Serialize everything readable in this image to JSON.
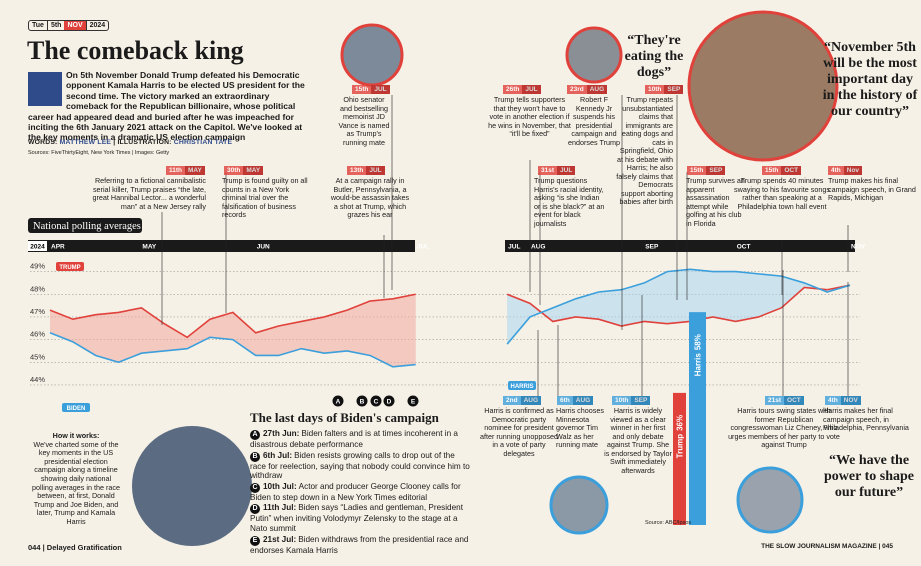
{
  "header": {
    "weekday": "Tue",
    "day": "5th",
    "month": "NOV",
    "year": "2024"
  },
  "title": "The comeback king",
  "intro": "On 5th November Donald Trump defeated his Democratic opponent Kamala Harris to be elected US president for the second time. The victory marked an extraordinary comeback for the Republican billionaire, whose political career had appeared dead and buried after he was impeached for inciting the 6th January 2021 attack on the Capitol. We've looked at the key moments in a dramatic US election campaign",
  "credits": {
    "words_label": "WORDS:",
    "words": "MATTHEW LEE",
    "illustration_label": "ILLUSTRATION:",
    "illustration": "CHRISTIAN TATE"
  },
  "sources": "Sources: FiveThirtyEight, New York Times | Images: Getty",
  "chart_data": {
    "type": "line",
    "title": "National polling averages",
    "year_label": "2024",
    "categories": [
      "APR",
      null,
      null,
      null,
      "MAY",
      null,
      null,
      null,
      null,
      "JUN",
      null,
      null,
      null,
      null,
      null,
      null,
      "JUL",
      null,
      null,
      null,
      "JUL",
      "AUG",
      null,
      null,
      null,
      null,
      "SEP",
      null,
      null,
      null,
      "OCT",
      null,
      null,
      null,
      null,
      "NOV"
    ],
    "series": [
      {
        "name": "TRUMP",
        "color": "#e0413b",
        "values": [
          47.3,
          46.9,
          47.1,
          47.2,
          47.4,
          46.7,
          46.1,
          46.9,
          47.2,
          46.3,
          46.6,
          46.8,
          47.0,
          47.3,
          47.7,
          47.8,
          48.0,
          null,
          null,
          null,
          48.0,
          47.6,
          46.8,
          47.0,
          46.9,
          46.6,
          46.8,
          46.7,
          46.8,
          47.0,
          46.8,
          47.0,
          47.4,
          48.3,
          48.2,
          48.4
        ]
      },
      {
        "name": "BIDEN",
        "color": "#3b9fdc",
        "values": [
          46.3,
          45.9,
          45.3,
          45.0,
          45.4,
          45.5,
          45.6,
          46.1,
          46.0,
          45.3,
          45.3,
          45.6,
          45.4,
          45.5,
          45.3,
          44.8,
          44.9,
          null,
          null,
          null,
          null,
          null,
          null,
          null,
          null,
          null,
          null,
          null,
          null,
          null,
          null,
          null,
          null,
          null,
          null,
          null
        ]
      },
      {
        "name": "HARRIS",
        "color": "#3b9fdc",
        "values": [
          null,
          null,
          null,
          null,
          null,
          null,
          null,
          null,
          null,
          null,
          null,
          null,
          null,
          null,
          null,
          null,
          null,
          null,
          null,
          null,
          45.8,
          47.0,
          47.4,
          47.8,
          48.1,
          48.2,
          48.5,
          49.0,
          49.1,
          49.0,
          49.0,
          48.9,
          48.8,
          48.5,
          48.1,
          48.4
        ]
      }
    ],
    "ylim": [
      43.6,
      49.6
    ],
    "yticks": [
      {
        "value": 44,
        "label": "44%"
      },
      {
        "value": 45,
        "label": "45%"
      },
      {
        "value": 46,
        "label": "46%"
      },
      {
        "value": 47,
        "label": "47%"
      },
      {
        "value": 48,
        "label": "48%"
      },
      {
        "value": 49,
        "label": "49%"
      }
    ],
    "grid": true
  },
  "callouts": [
    {
      "day": "11th",
      "month": "MAY",
      "color": "#e0413b",
      "text": "Referring to a fictional cannibalistic serial killer, Trump praises “the late, great Hannibal Lector... a wonderful man” at a New Jersey rally"
    },
    {
      "day": "30th",
      "month": "MAY",
      "color": "#e0413b",
      "text": "Trump is found guilty on all counts in a New York criminal trial over the falsification of business records"
    },
    {
      "day": "15th",
      "month": "JUL",
      "color": "#e0413b",
      "text": "Ohio senator and bestselling memoirist JD Vance is named as Trump's running mate"
    },
    {
      "day": "13th",
      "month": "JUL",
      "color": "#e0413b",
      "text": "At a campaign rally in Butler, Pennsylvania, a would-be assassin takes a shot at Trump, which grazes his ear"
    },
    {
      "day": "26th",
      "month": "JUL",
      "color": "#e0413b",
      "text": "Trump tells supporters that they won't have to vote in another election if he wins in November, that “it'll be fixed”"
    },
    {
      "day": "31st",
      "month": "JUL",
      "color": "#e0413b",
      "text": "Trump questions Harris's racial identity, asking “is she Indian or is she black?” at an event for black journalists"
    },
    {
      "day": "23rd",
      "month": "AUG",
      "color": "#e0413b",
      "text": "Robert F Kennedy Jr suspends his presidential campaign and endorses Trump"
    },
    {
      "day": "10th",
      "month": "SEP",
      "color": "#e0413b",
      "text": "Trump repeats unsubstantiated claims that immigrants are eating dogs and cats in Springfield, Ohio at his debate with Harris; he also falsely claims that Democrats support aborting babies after birth"
    },
    {
      "day": "15th",
      "month": "SEP",
      "color": "#e0413b",
      "text": "Trump survives an apparent assassination attempt while golfing at his club in Florida"
    },
    {
      "day": "15th",
      "month": "OCT",
      "color": "#e0413b",
      "text": "Trump spends 40 minutes swaying to his favourite songs rather than speaking at a Philadelphia town hall event"
    },
    {
      "day": "4th",
      "month": "Nov",
      "color": "#e0413b",
      "text": "Trump makes his final campaign speech, in Grand Rapids, Michigan"
    },
    {
      "day": "2nd",
      "month": "AUG",
      "color": "#3b9fdc",
      "text": "Harris is confirmed as Democratic party nominee for president after running unopposed in a vote of party delegates"
    },
    {
      "day": "6th",
      "month": "AUG",
      "color": "#3b9fdc",
      "text": "Harris chooses Minnesota governor Tim Walz as her running mate"
    },
    {
      "day": "10th",
      "month": "SEP",
      "color": "#3b9fdc",
      "text": "Harris is widely viewed as a clear winner in her first and only debate against Trump. She is endorsed by Taylor Swift immediately afterwards"
    },
    {
      "day": "21st",
      "month": "OCT",
      "color": "#3b9fdc",
      "text": "Harris tours swing states with former Republican congresswoman Liz Cheney, who urges members of her party to vote against Trump"
    },
    {
      "day": "4th",
      "month": "NOV",
      "color": "#3b9fdc",
      "text": "Harris makes her final campaign speech, in Philadelphia, Pennsylvania"
    }
  ],
  "quotes": [
    "“They're eating the dogs”",
    "“November 5th will be the most important day in the history of our country”",
    "“We have the power to shape our future”"
  ],
  "biden_box": {
    "title": "The last days of Biden's campaign",
    "items": [
      {
        "letter": "A",
        "date": "27th Jun:",
        "text": "Biden falters and is at times incoherent in a disastrous debate performance"
      },
      {
        "letter": "B",
        "date": "6th Jul:",
        "text": "Biden resists growing calls to drop out of the race for reelection, saying that nobody could convince him to withdraw"
      },
      {
        "letter": "C",
        "date": "10th Jul:",
        "text": "Actor and producer George Clooney calls for Biden to step down in a New York Times editorial"
      },
      {
        "letter": "D",
        "date": "11th Jul:",
        "text": "Biden says “Ladies and gentleman, President Putin” when inviting Volodymyr Zelensky to the stage at a Nato summit"
      },
      {
        "letter": "E",
        "date": "21st Jul:",
        "text": "Biden withdraws from the presidential race and endorses Kamala Harris"
      }
    ]
  },
  "how_it_works": {
    "title": "How it works:",
    "text": "We've charted some of the key moments in the US presidential election campaign along a timeline showing daily national polling averages in the race between, at first, Donald Trump and Joe Biden, and later, Trump and Kamala Harris"
  },
  "debate_poll": {
    "type": "bar",
    "categories": [
      "Trump",
      "Harris"
    ],
    "values": [
      36,
      58
    ],
    "value_labels": [
      "36%",
      "58%"
    ],
    "colors": [
      "#e0413b",
      "#3b9fdc"
    ],
    "source": "Source: ABC/Ipsos"
  },
  "footer": {
    "left_page": "044",
    "left_title": "Delayed Gratification",
    "right_title": "THE SLOW JOURNALISM MAGAZINE",
    "right_page": "045"
  }
}
